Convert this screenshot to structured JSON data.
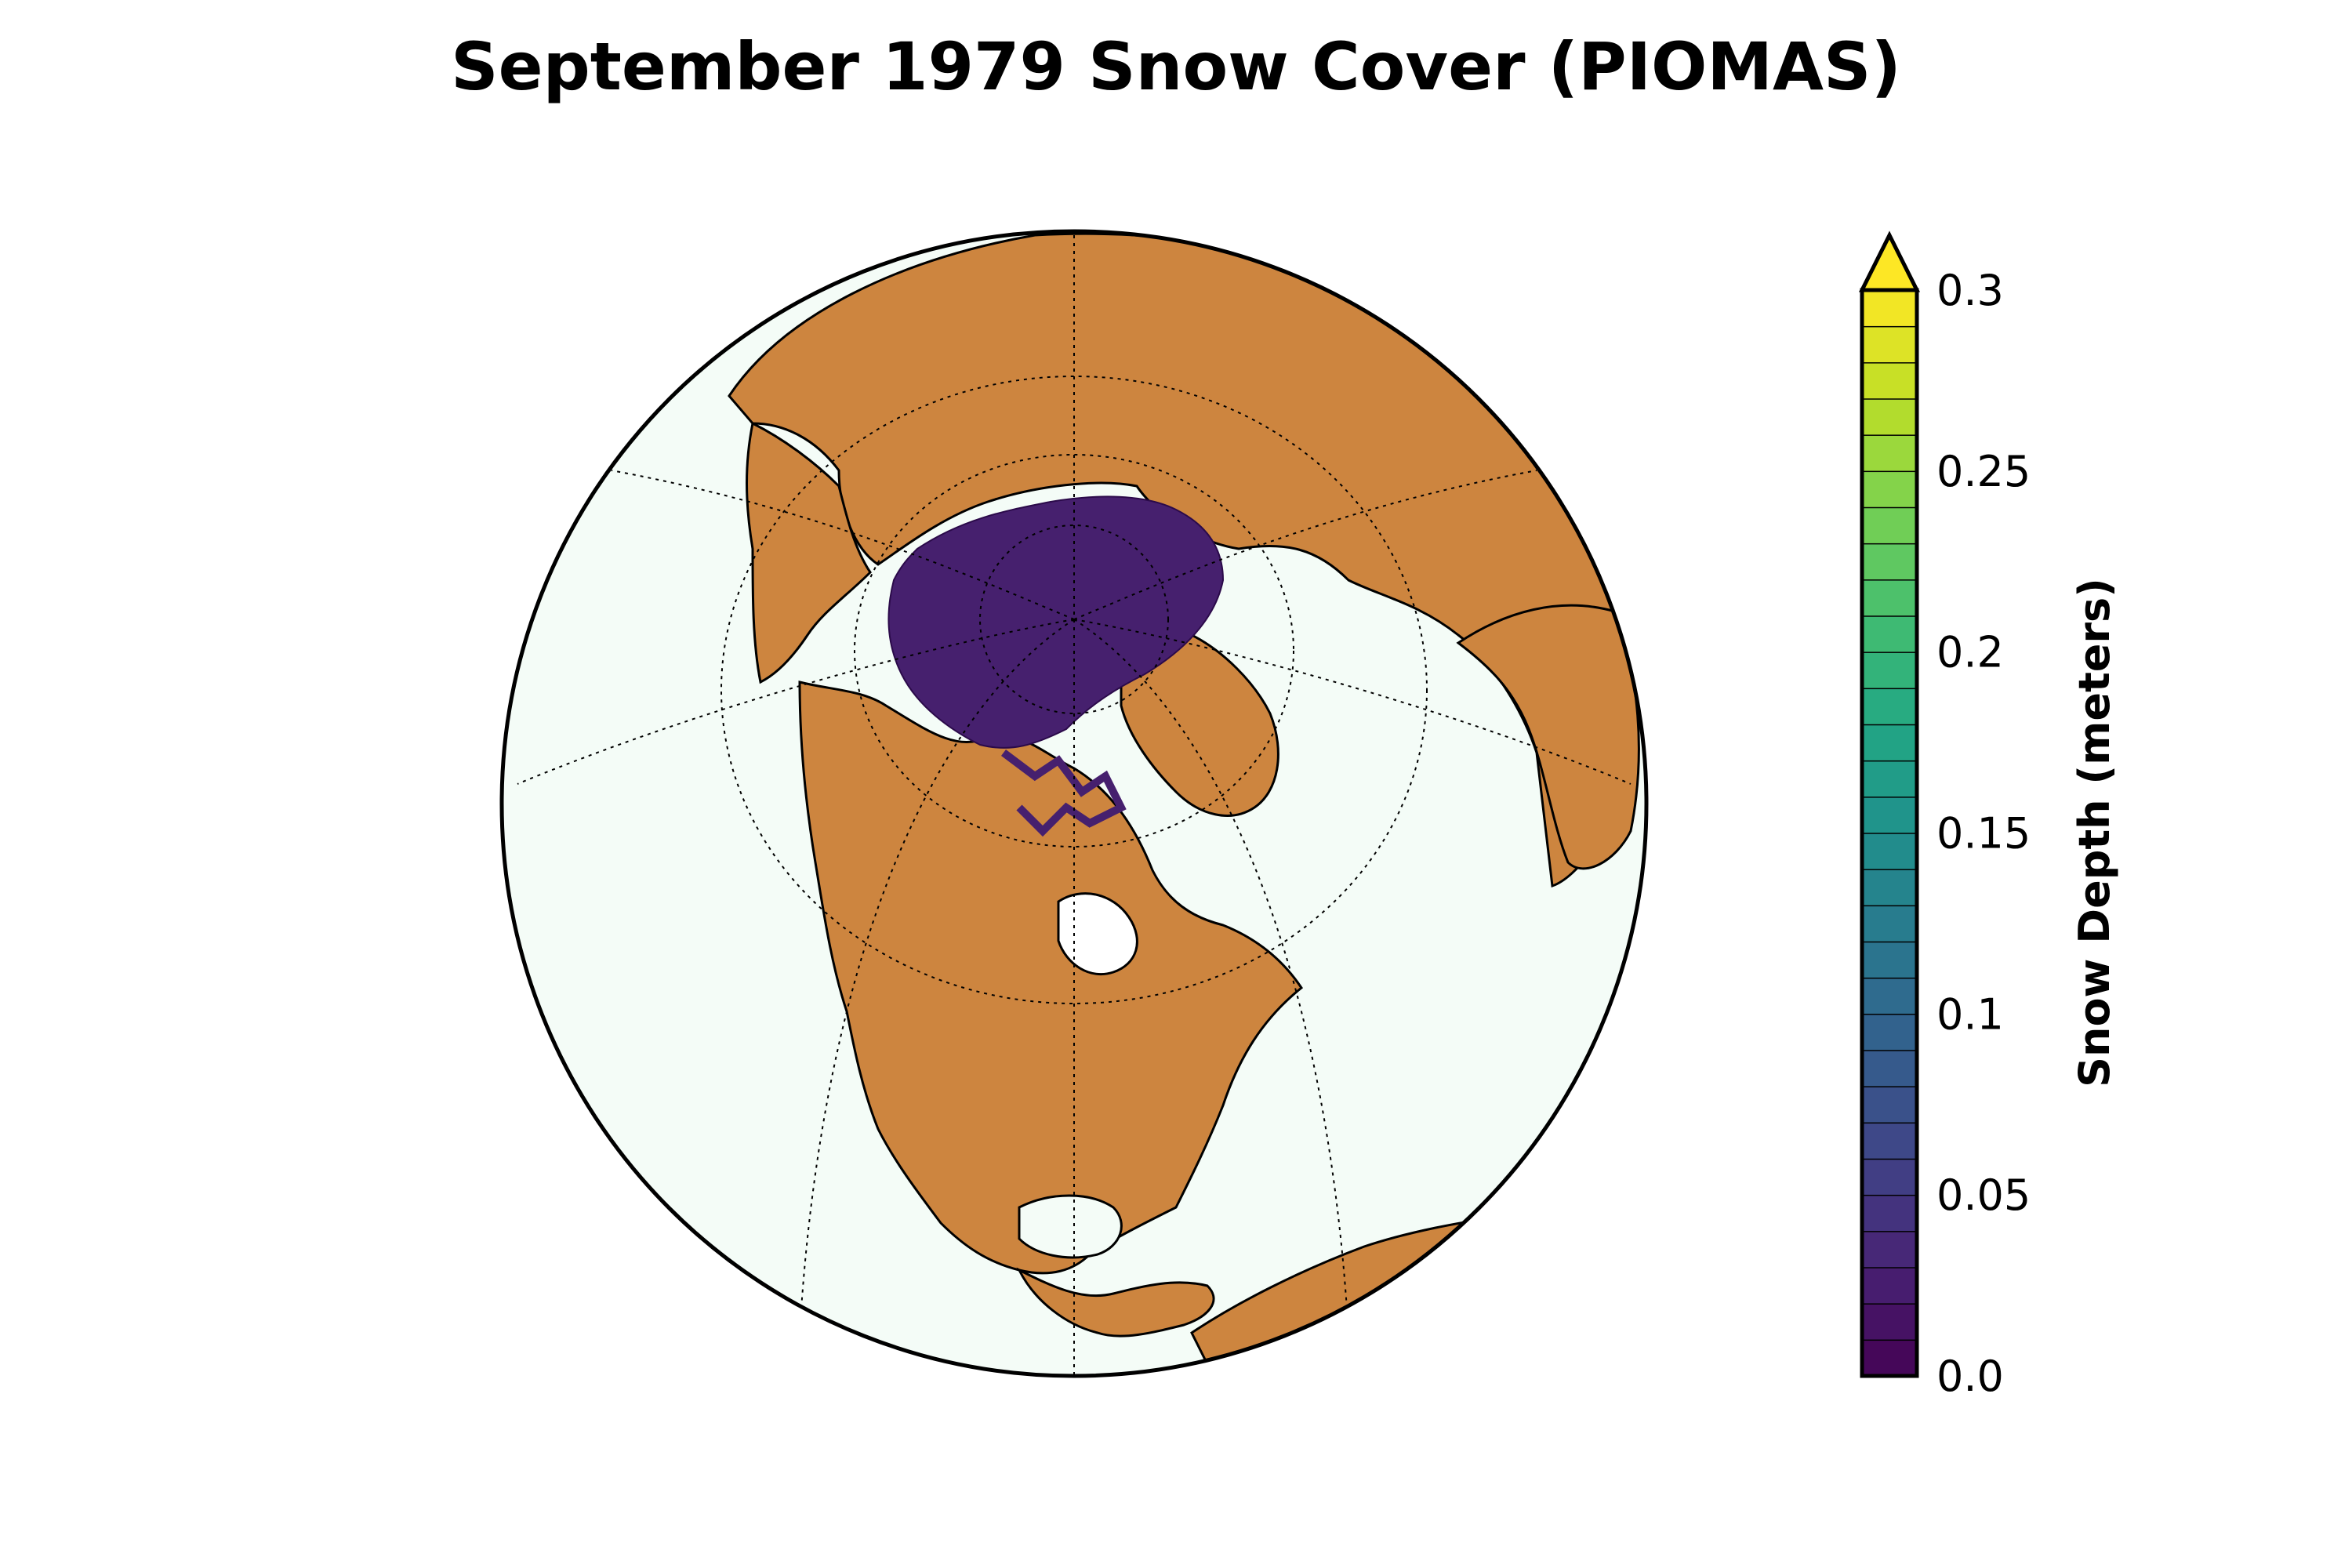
{
  "title": "September 1979 Snow Cover (PIOMAS)",
  "colors": {
    "ocean": "#f4fcf7",
    "land": "#cd853f",
    "coast": "#000000",
    "snow_dominant": "#46206e"
  },
  "colorbar": {
    "label": "Snow Depth (meters)",
    "ticks": [
      "0.0",
      "0.05",
      "0.1",
      "0.15",
      "0.2",
      "0.25",
      "0.3"
    ],
    "tick_values": [
      0.0,
      0.05,
      0.1,
      0.15,
      0.2,
      0.25,
      0.3
    ],
    "range": [
      0.0,
      0.3
    ],
    "levels": 30,
    "extend": "max",
    "colormap": "viridis"
  },
  "map": {
    "projection": "orthographic",
    "graticule": "dotted",
    "snow_extent_note": "Arctic Ocean snow on sea ice near 0.0–0.05 m"
  }
}
